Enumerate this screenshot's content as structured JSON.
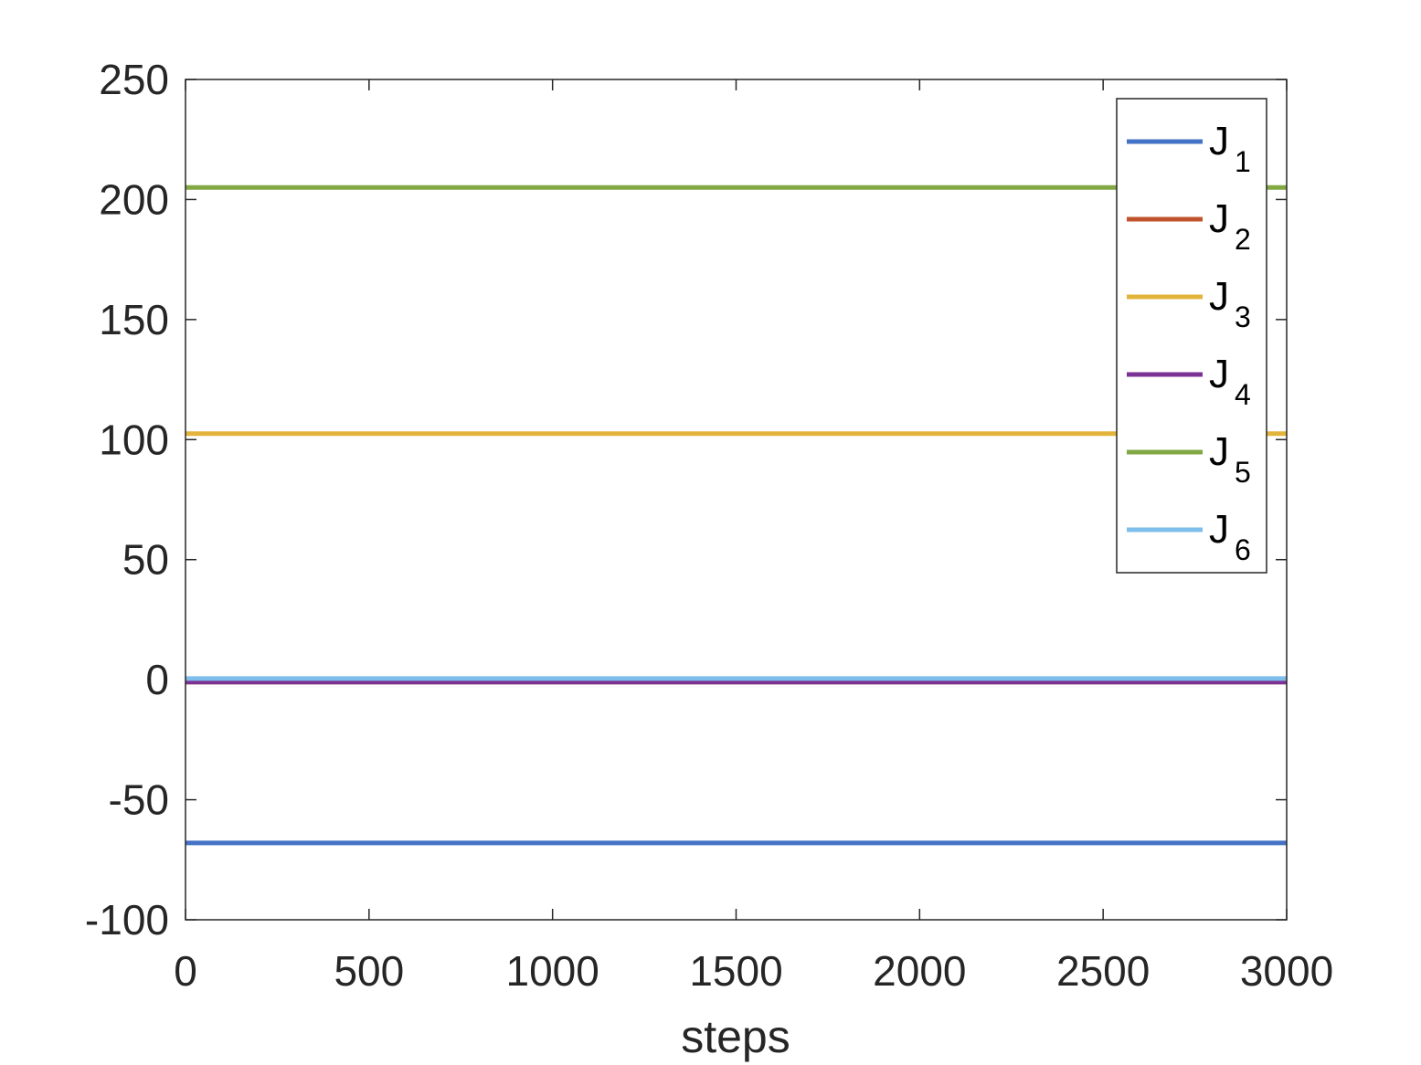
{
  "chart_data": {
    "type": "line",
    "xlabel": "steps",
    "ylabel": "",
    "title": "",
    "xlim": [
      0,
      3000
    ],
    "ylim": [
      -100,
      250
    ],
    "xticks": [
      0,
      500,
      1000,
      1500,
      2000,
      2500,
      3000
    ],
    "yticks": [
      -100,
      -50,
      0,
      50,
      100,
      150,
      200,
      250
    ],
    "xtick_labels": [
      "0",
      "500",
      "1000",
      "1500",
      "2000",
      "2500",
      "3000"
    ],
    "ytick_labels": [
      "-100",
      "-50",
      "0",
      "50",
      "100",
      "150",
      "200",
      "250"
    ],
    "grid": false,
    "legend_position": "top-right",
    "x": [
      0,
      3000
    ],
    "series": [
      {
        "name": "J",
        "sub": "1",
        "color": "#4472C4",
        "values": [
          -68,
          -68
        ]
      },
      {
        "name": "J",
        "sub": "2",
        "color": "#C0532B",
        "values": [
          -1,
          -1
        ]
      },
      {
        "name": "J",
        "sub": "3",
        "color": "#E3B43C",
        "values": [
          102.5,
          102.5
        ]
      },
      {
        "name": "J",
        "sub": "4",
        "color": "#7B3294",
        "values": [
          -1,
          -1
        ]
      },
      {
        "name": "J",
        "sub": "5",
        "color": "#82A844",
        "values": [
          205,
          205
        ]
      },
      {
        "name": "J",
        "sub": "6",
        "color": "#7FBEEB",
        "values": [
          0.5,
          0.5
        ]
      }
    ]
  }
}
